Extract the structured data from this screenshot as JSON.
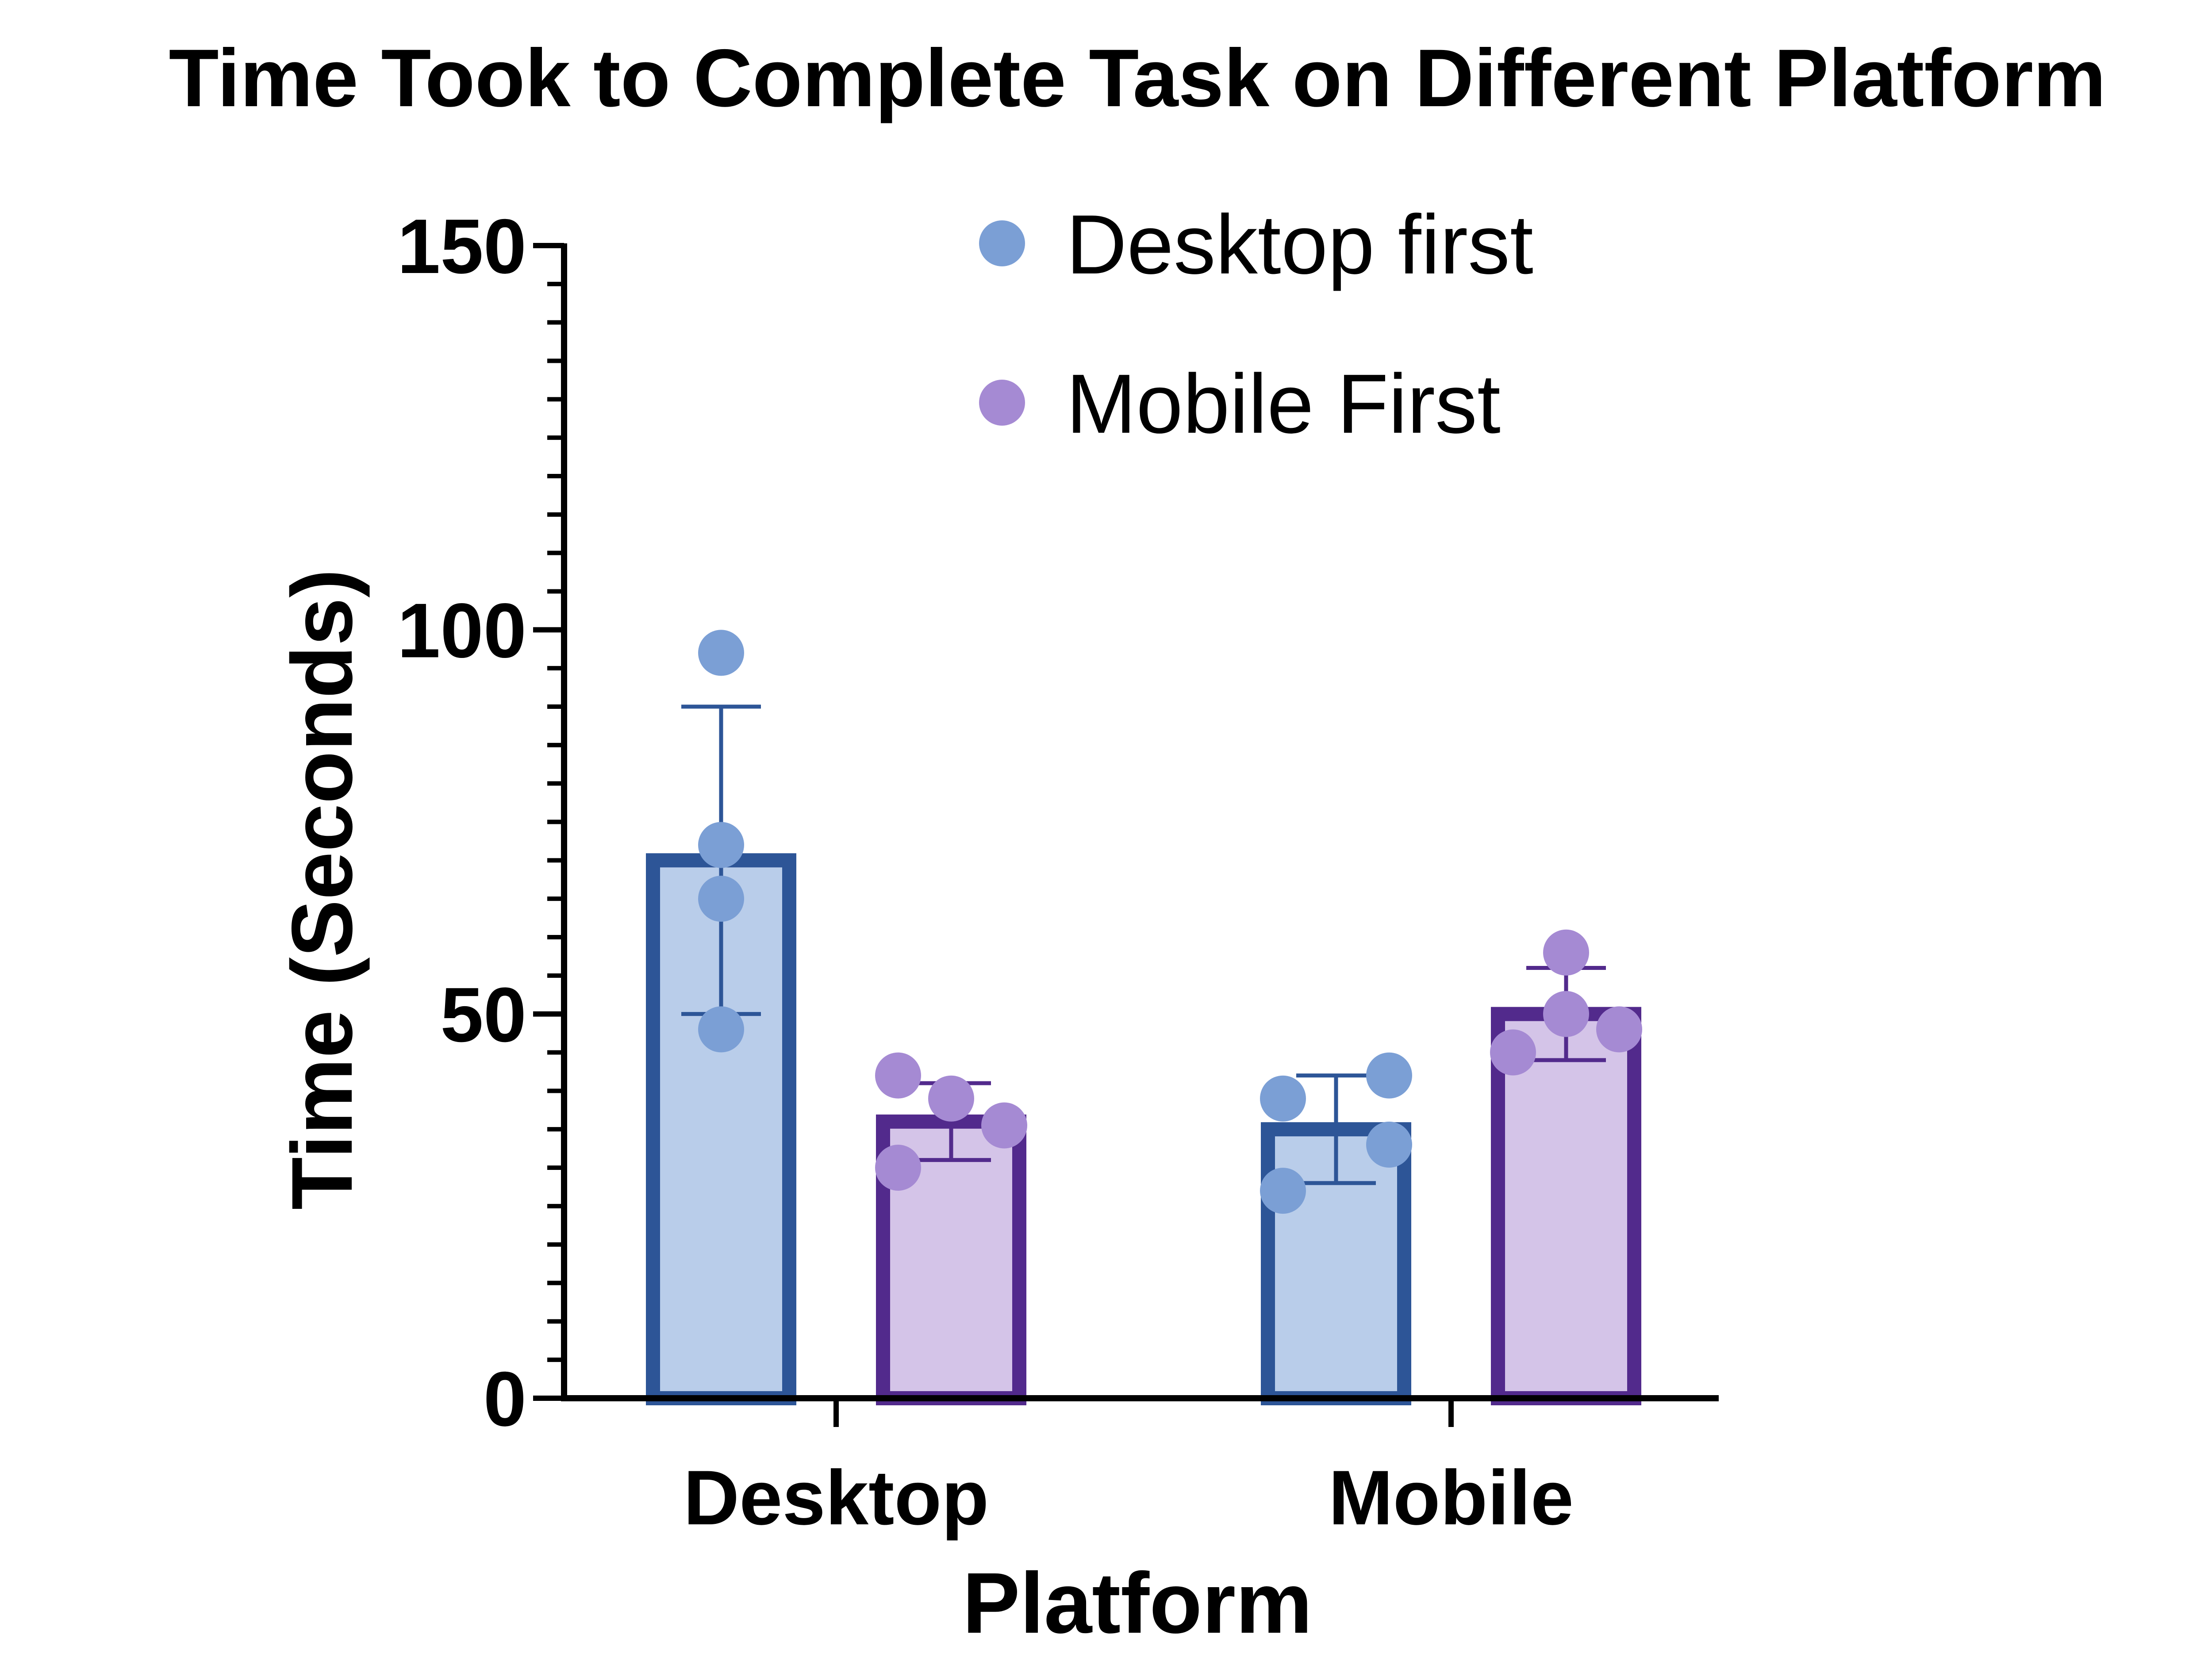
{
  "chart_data": {
    "type": "bar",
    "title": "Time Took to Complete Task on Different Platform",
    "xlabel": "Platform",
    "ylabel": "Time (Seconds)",
    "ylim": [
      0,
      150
    ],
    "yticks": [
      "0",
      "50",
      "100",
      "150"
    ],
    "minor_tick_step": 5,
    "grid": false,
    "legend_position": "top-right",
    "categories": [
      "Desktop",
      "Mobile"
    ],
    "series": [
      {
        "name": "Desktop first",
        "edge_color": "#2D5597",
        "fill_color": "#B9CDEA",
        "point_color": "#7B9FD5",
        "values": [
          70,
          35
        ],
        "error": [
          20,
          7
        ],
        "points": [
          [
            97,
            72,
            65,
            48
          ],
          [
            39,
            42,
            33,
            27
          ]
        ]
      },
      {
        "name": "Mobile First",
        "edge_color": "#522A8C",
        "fill_color": "#D4C4E8",
        "point_color": "#A58AD3",
        "values": [
          36,
          50
        ],
        "error": [
          5,
          6
        ],
        "points": [
          [
            42,
            39,
            35.5,
            30
          ],
          [
            58,
            50,
            45,
            48
          ]
        ]
      }
    ]
  }
}
